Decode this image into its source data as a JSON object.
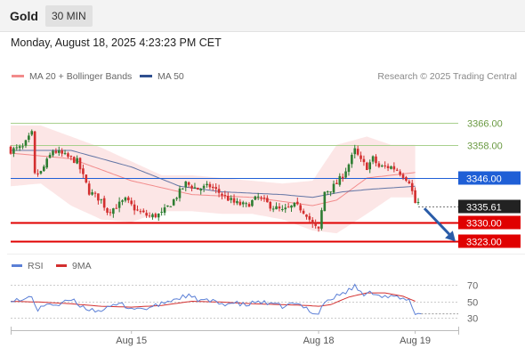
{
  "header": {
    "instrument": "Gold",
    "timeframe": "30 MIN"
  },
  "timestamp": "Monday, August 18, 2025 4:23:23 PM CET",
  "legend": {
    "bollinger_label": "MA 20 + Bollinger Bands",
    "ma50_label": "MA 50"
  },
  "credit": "Research © 2025 Trading Central",
  "rsi_legend": {
    "rsi_label": "RSI",
    "ma_label": "9MA"
  },
  "colors": {
    "bollinger": "#f28b8b",
    "ma50": "#2f4f8f",
    "up_candle": "#2e7d32",
    "down_candle": "#d32f2f",
    "resistance": "#a8d08d",
    "pivot": "#1f5fd6",
    "support": "#e00000",
    "last_price": "#222222",
    "arrow": "#2a5ca8",
    "rsi": "#5b7fd6",
    "rsi_ma": "#d32f2f"
  },
  "chart_data": [
    {
      "type": "candlestick",
      "title": "Gold",
      "y_range": [
        3317,
        3375
      ],
      "x_tick_labels": [
        {
          "label": "Aug 15",
          "bar": 40
        },
        {
          "label": "Aug 18",
          "bar": 102
        },
        {
          "label": "Aug 19",
          "bar": 134
        }
      ],
      "levels": [
        {
          "role": "resistance",
          "label": "3366.00",
          "value": 3366.0
        },
        {
          "role": "resistance",
          "label": "3358.00",
          "value": 3358.0
        },
        {
          "role": "pivot",
          "label": "3346.00",
          "value": 3346.0
        },
        {
          "role": "last",
          "label": "3335.61",
          "value": 3335.61
        },
        {
          "role": "support",
          "label": "3330.00",
          "value": 3330.0
        },
        {
          "role": "support",
          "label": "3323.00",
          "value": 3323.0
        }
      ],
      "forecast_arrow": {
        "from_value": 3335.0,
        "to_value": 3323.0
      },
      "close_path": [
        [
          0,
          3356
        ],
        [
          4,
          3357
        ],
        [
          7,
          3362
        ],
        [
          8,
          3347
        ],
        [
          10,
          3348
        ],
        [
          14,
          3356
        ],
        [
          18,
          3354
        ],
        [
          22,
          3352
        ],
        [
          26,
          3341
        ],
        [
          30,
          3338
        ],
        [
          32,
          3334
        ],
        [
          34,
          3335
        ],
        [
          38,
          3338
        ],
        [
          42,
          3334
        ],
        [
          46,
          3332
        ],
        [
          50,
          3333
        ],
        [
          54,
          3338
        ],
        [
          56,
          3341
        ],
        [
          58,
          3344
        ],
        [
          62,
          3342
        ],
        [
          66,
          3343
        ],
        [
          70,
          3340
        ],
        [
          74,
          3337
        ],
        [
          78,
          3336
        ],
        [
          82,
          3339
        ],
        [
          86,
          3336
        ],
        [
          90,
          3334
        ],
        [
          94,
          3336
        ],
        [
          96,
          3335
        ],
        [
          98,
          3333
        ],
        [
          100,
          3329
        ],
        [
          102,
          3327
        ],
        [
          104,
          3341
        ],
        [
          106,
          3342
        ],
        [
          108,
          3344
        ],
        [
          110,
          3347
        ],
        [
          112,
          3351
        ],
        [
          114,
          3356
        ],
        [
          116,
          3352
        ],
        [
          118,
          3350
        ],
        [
          120,
          3353
        ],
        [
          122,
          3350
        ],
        [
          126,
          3350
        ],
        [
          128,
          3349
        ],
        [
          130,
          3347
        ],
        [
          132,
          3345
        ],
        [
          134,
          3337
        ]
      ],
      "ma20_path": [
        [
          0,
          3355
        ],
        [
          20,
          3353
        ],
        [
          40,
          3345
        ],
        [
          60,
          3340
        ],
        [
          80,
          3339
        ],
        [
          100,
          3336
        ],
        [
          108,
          3338
        ],
        [
          118,
          3346
        ],
        [
          134,
          3348
        ]
      ],
      "ma50_path": [
        [
          0,
          3356
        ],
        [
          20,
          3356
        ],
        [
          40,
          3350
        ],
        [
          56,
          3343
        ],
        [
          70,
          3341
        ],
        [
          90,
          3340
        ],
        [
          100,
          3339
        ],
        [
          110,
          3341
        ],
        [
          120,
          3342
        ],
        [
          134,
          3343
        ]
      ],
      "bb_upper_path": [
        [
          0,
          3365
        ],
        [
          10,
          3365
        ],
        [
          20,
          3361
        ],
        [
          30,
          3357
        ],
        [
          40,
          3352
        ],
        [
          50,
          3347
        ],
        [
          60,
          3347
        ],
        [
          70,
          3346
        ],
        [
          80,
          3345
        ],
        [
          90,
          3344
        ],
        [
          100,
          3345
        ],
        [
          108,
          3358
        ],
        [
          118,
          3361
        ],
        [
          126,
          3358
        ],
        [
          134,
          3358
        ]
      ],
      "bb_lower_path": [
        [
          0,
          3343
        ],
        [
          10,
          3344
        ],
        [
          20,
          3336
        ],
        [
          30,
          3331
        ],
        [
          40,
          3330
        ],
        [
          50,
          3334
        ],
        [
          60,
          3334
        ],
        [
          70,
          3333
        ],
        [
          80,
          3333
        ],
        [
          90,
          3331
        ],
        [
          100,
          3327
        ],
        [
          108,
          3326
        ],
        [
          118,
          3333
        ],
        [
          126,
          3339
        ],
        [
          134,
          3339
        ]
      ]
    },
    {
      "type": "line",
      "title": "RSI",
      "y_range": [
        25,
        75
      ],
      "y_tick_labels": [
        "70",
        "50",
        "30"
      ],
      "y_ticks": [
        70,
        50,
        30
      ],
      "series": [
        {
          "name": "RSI",
          "points": [
            [
              0,
              53
            ],
            [
              4,
              50
            ],
            [
              7,
              57
            ],
            [
              9,
              38
            ],
            [
              12,
              48
            ],
            [
              16,
              45
            ],
            [
              20,
              52
            ],
            [
              24,
              43
            ],
            [
              28,
              39
            ],
            [
              32,
              41
            ],
            [
              36,
              47
            ],
            [
              40,
              42
            ],
            [
              44,
              41
            ],
            [
              48,
              44
            ],
            [
              52,
              50
            ],
            [
              56,
              54
            ],
            [
              58,
              57
            ],
            [
              62,
              52
            ],
            [
              66,
              50
            ],
            [
              70,
              47
            ],
            [
              74,
              48
            ],
            [
              78,
              45
            ],
            [
              82,
              50
            ],
            [
              86,
              46
            ],
            [
              90,
              44
            ],
            [
              94,
              47
            ],
            [
              98,
              42
            ],
            [
              100,
              37
            ],
            [
              102,
              35
            ],
            [
              104,
              50
            ],
            [
              106,
              52
            ],
            [
              108,
              56
            ],
            [
              110,
              60
            ],
            [
              112,
              63
            ],
            [
              114,
              68
            ],
            [
              116,
              60
            ],
            [
              118,
              58
            ],
            [
              120,
              61
            ],
            [
              124,
              56
            ],
            [
              128,
              54
            ],
            [
              130,
              52
            ],
            [
              132,
              50
            ],
            [
              134,
              36
            ],
            [
              136,
              35
            ]
          ]
        },
        {
          "name": "9MA",
          "points": [
            [
              0,
              50
            ],
            [
              10,
              49
            ],
            [
              20,
              47
            ],
            [
              30,
              44
            ],
            [
              40,
              43
            ],
            [
              50,
              45
            ],
            [
              60,
              50
            ],
            [
              70,
              49
            ],
            [
              80,
              47
            ],
            [
              90,
              46
            ],
            [
              98,
              45
            ],
            [
              102,
              44
            ],
            [
              106,
              46
            ],
            [
              112,
              55
            ],
            [
              118,
              60
            ],
            [
              124,
              60
            ],
            [
              130,
              56
            ],
            [
              134,
              50
            ]
          ]
        }
      ]
    }
  ]
}
